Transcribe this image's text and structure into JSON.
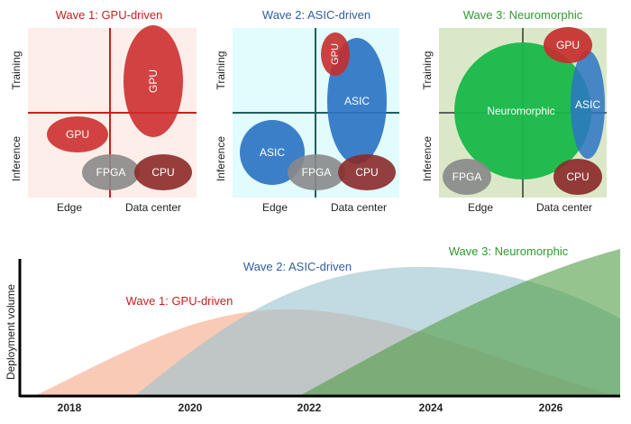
{
  "panels": [
    {
      "title": "Wave 1: GPU-driven",
      "title_color": "#c8201e",
      "bg": "#fdeee9",
      "axis_color": "#c8201e",
      "y_top": "Training",
      "y_bottom": "Inference",
      "x_left": "Edge",
      "x_right": "Data center",
      "blobs": [
        {
          "label": "GPU",
          "fill": "#cc2a2a"
        },
        {
          "label": "GPU",
          "fill": "#cc2a2a"
        },
        {
          "label": "FPGA",
          "fill": "#8a8a8a"
        },
        {
          "label": "CPU",
          "fill": "#8c2a2a"
        }
      ]
    },
    {
      "title": "Wave 2: ASIC-driven",
      "title_color": "#2e5f9e",
      "bg": "#e2fbfd",
      "axis_color": "#1f5f5f",
      "y_top": "Training",
      "y_bottom": "Inference",
      "x_left": "Edge",
      "x_right": "Data center",
      "blobs": [
        {
          "label": "ASIC",
          "fill": "#2c74c4"
        },
        {
          "label": "GPU",
          "fill": "#c72e2e"
        },
        {
          "label": "ASIC",
          "fill": "#2c74c4"
        },
        {
          "label": "FPGA",
          "fill": "#8a8a8a"
        },
        {
          "label": "CPU",
          "fill": "#8c2a2a"
        }
      ]
    },
    {
      "title": "Wave 3: Neuromorphic",
      "title_color": "#2f9a2f",
      "bg": "#dbe8c8",
      "axis_color": "#333333",
      "y_top": "Training",
      "y_bottom": "Inference",
      "x_left": "Edge",
      "x_right": "Data center",
      "blobs": [
        {
          "label": "Neuromorphic",
          "fill": "#17b84a"
        },
        {
          "label": "ASIC",
          "fill": "#2c74c4"
        },
        {
          "label": "GPU",
          "fill": "#c72e2e"
        },
        {
          "label": "FPGA",
          "fill": "#8a8a8a"
        },
        {
          "label": "CPU",
          "fill": "#8c2a2a"
        }
      ]
    }
  ],
  "timeline": {
    "ylabel": "Deployment volume",
    "years": [
      "2018",
      "2020",
      "2022",
      "2024",
      "2026"
    ],
    "waves": [
      {
        "label": "Wave 1: GPU-driven",
        "color": "#c8201e",
        "fill": "#f7b79a"
      },
      {
        "label": "Wave 2: ASIC-driven",
        "color": "#2e5f9e",
        "fill": "#9cc4cf"
      },
      {
        "label": "Wave 3: Neuromorphic",
        "color": "#2f9a2f",
        "fill": "#4f9d45"
      }
    ]
  }
}
